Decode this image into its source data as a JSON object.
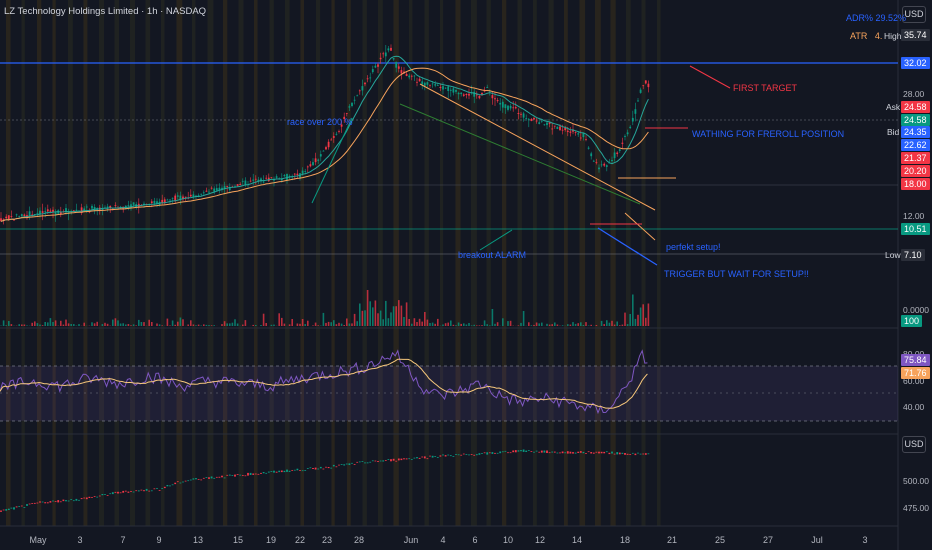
{
  "header": {
    "symbol_title": "LZ Technology Holdings Limited · 1h · NASDAQ",
    "currency_button": "USD",
    "lower_currency_button": "USD"
  },
  "metrics": {
    "adr_label": "ADR%",
    "adr_value": "29.52%",
    "atr_label": "ATR",
    "atr_value": "4.",
    "high_label": "High",
    "high_value": "35.74"
  },
  "annotations": {
    "first_target": "FIRST TARGET",
    "race": "race over 200 %",
    "watching": "WATHING FOR FREROLL POSITION",
    "perfekt": "perfekt setup!",
    "breakout": "breakout ALARM",
    "trigger": "TRIGGER BUT WAIT FOR SETUP!!"
  },
  "price_scale": {
    "ticks": [
      "28.00",
      "12.00",
      "0.0000",
      "80.00",
      "60.00",
      "40.00",
      "500.00",
      "475.00"
    ],
    "tags": [
      {
        "text": "32.02",
        "color": "#2962ff"
      },
      {
        "text": "24.58",
        "color": "#f23645",
        "side": "Ask"
      },
      {
        "text": "24.58",
        "color": "#089981"
      },
      {
        "text": "24.35",
        "color": "#2962ff",
        "side": "Bid"
      },
      {
        "text": "22.62",
        "color": "#2962ff"
      },
      {
        "text": "21.37",
        "color": "#f23645"
      },
      {
        "text": "20.20",
        "color": "#f23645"
      },
      {
        "text": "18.00",
        "color": "#f23645"
      },
      {
        "text": "10.51",
        "color": "#089981"
      },
      {
        "text": "7.10",
        "color": "#2a2e39",
        "side": "Low"
      },
      {
        "text": "100",
        "color": "#089981"
      },
      {
        "text": "75.84",
        "color": "#7e57c2"
      },
      {
        "text": "71.76",
        "color": "#f7a35c"
      }
    ]
  },
  "time_axis": {
    "labels": [
      "May",
      "3",
      "7",
      "9",
      "13",
      "15",
      "19",
      "22",
      "23",
      "28",
      "Jun",
      "4",
      "6",
      "10",
      "12",
      "14",
      "18",
      "21",
      "25",
      "27",
      "Jul",
      "3"
    ]
  },
  "chart_data": {
    "type": "candlestick",
    "title": "LZ Technology Holdings Limited · 1h · NASDAQ",
    "price_path": [
      [
        0,
        9.3
      ],
      [
        20,
        9.6
      ],
      [
        40,
        9.8
      ],
      [
        60,
        9.9
      ],
      [
        80,
        10.0
      ],
      [
        100,
        10.1
      ],
      [
        120,
        10.2
      ],
      [
        140,
        10.4
      ],
      [
        160,
        10.6
      ],
      [
        180,
        10.9
      ],
      [
        200,
        11.2
      ],
      [
        220,
        11.6
      ],
      [
        240,
        12.0
      ],
      [
        260,
        12.4
      ],
      [
        280,
        12.6
      ],
      [
        300,
        12.8
      ],
      [
        320,
        14.5
      ],
      [
        340,
        18.0
      ],
      [
        355,
        22.0
      ],
      [
        370,
        26.0
      ],
      [
        380,
        29.0
      ],
      [
        390,
        32.0
      ],
      [
        395,
        28.5
      ],
      [
        402,
        26.5
      ],
      [
        410,
        25.8
      ],
      [
        420,
        25.0
      ],
      [
        430,
        24.5
      ],
      [
        440,
        24.0
      ],
      [
        450,
        23.5
      ],
      [
        460,
        23.2
      ],
      [
        470,
        22.8
      ],
      [
        480,
        22.5
      ],
      [
        488,
        23.8
      ],
      [
        495,
        22.0
      ],
      [
        505,
        21.0
      ],
      [
        515,
        20.5
      ],
      [
        525,
        19.5
      ],
      [
        535,
        19.0
      ],
      [
        545,
        18.5
      ],
      [
        555,
        18.0
      ],
      [
        565,
        17.8
      ],
      [
        575,
        17.5
      ],
      [
        585,
        16.8
      ],
      [
        592,
        14.5
      ],
      [
        600,
        13.5
      ],
      [
        610,
        14.0
      ],
      [
        620,
        15.5
      ],
      [
        630,
        18.0
      ],
      [
        636,
        20.5
      ],
      [
        642,
        24.3
      ],
      [
        646,
        24.58
      ],
      [
        650,
        24.4
      ]
    ],
    "rsi_path": [
      [
        0,
        55
      ],
      [
        30,
        62
      ],
      [
        60,
        58
      ],
      [
        90,
        64
      ],
      [
        120,
        60
      ],
      [
        150,
        66
      ],
      [
        180,
        58
      ],
      [
        210,
        62
      ],
      [
        240,
        60
      ],
      [
        270,
        58
      ],
      [
        300,
        64
      ],
      [
        330,
        68
      ],
      [
        360,
        72
      ],
      [
        380,
        78
      ],
      [
        395,
        84
      ],
      [
        410,
        70
      ],
      [
        425,
        55
      ],
      [
        440,
        50
      ],
      [
        460,
        54
      ],
      [
        480,
        60
      ],
      [
        500,
        50
      ],
      [
        520,
        45
      ],
      [
        540,
        48
      ],
      [
        560,
        46
      ],
      [
        580,
        42
      ],
      [
        600,
        38
      ],
      [
        615,
        44
      ],
      [
        625,
        58
      ],
      [
        635,
        70
      ],
      [
        642,
        82
      ],
      [
        650,
        75.84
      ]
    ],
    "lower_path": [
      [
        0,
        465
      ],
      [
        40,
        470
      ],
      [
        80,
        472
      ],
      [
        120,
        476
      ],
      [
        160,
        478
      ],
      [
        180,
        482
      ],
      [
        200,
        484
      ],
      [
        240,
        486
      ],
      [
        280,
        488
      ],
      [
        320,
        490
      ],
      [
        360,
        493
      ],
      [
        400,
        495
      ],
      [
        440,
        497
      ],
      [
        480,
        498
      ],
      [
        520,
        500
      ],
      [
        560,
        499
      ],
      [
        600,
        499
      ],
      [
        640,
        498
      ],
      [
        650,
        498
      ]
    ],
    "x_range": [
      0,
      900
    ],
    "levels": {
      "first_target": 32.02,
      "ask": 24.58,
      "bid": 24.35,
      "support": 10.51,
      "low": 7.1
    }
  }
}
